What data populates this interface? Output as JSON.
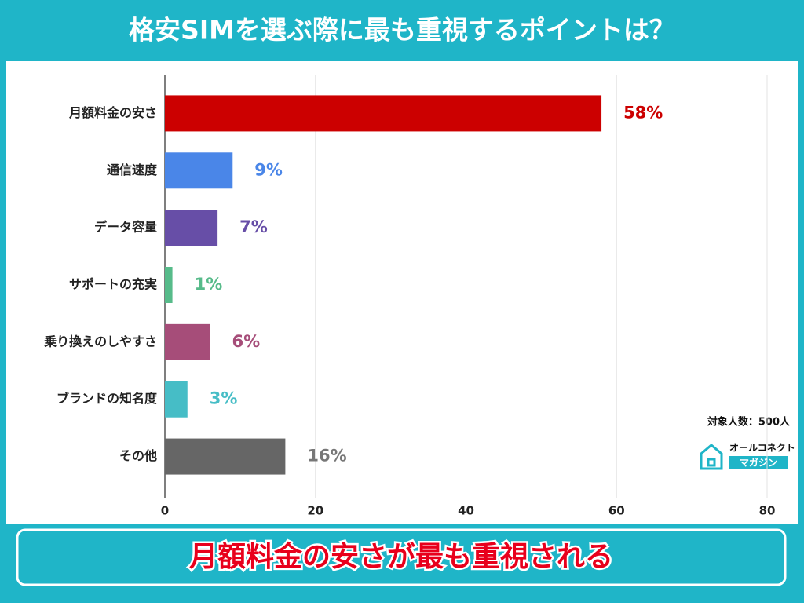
{
  "chart_data": {
    "type": "bar",
    "orientation": "horizontal",
    "title": "格安SIMを選ぶ際に最も重視するポイントは？",
    "categories": [
      "月額料金の安さ",
      "通信速度",
      "データ容量",
      "サポートの充実",
      "乗り換えのしやすさ",
      "ブランドの知名度",
      "その他"
    ],
    "values": [
      58,
      9,
      7,
      1,
      6,
      3,
      16
    ],
    "value_labels": [
      "58%",
      "9%",
      "7%",
      "1%",
      "6%",
      "3%",
      "16%"
    ],
    "colors": [
      "#cc0000",
      "#4a86e8",
      "#674ea7",
      "#57bb8a",
      "#a64d79",
      "#46bdc6",
      "#666666"
    ],
    "label_colors": [
      "#cc0000",
      "#4a86e8",
      "#674ea7",
      "#57bb8a",
      "#a64d79",
      "#46bdc6",
      "#777777"
    ],
    "xlim": [
      0,
      80
    ],
    "xticks": [
      0,
      20,
      40,
      60,
      80
    ],
    "grid": true,
    "note": "対象人数：500人",
    "logo_line1": "オールコネクト",
    "logo_line2": "マガジン",
    "conclusion": "月額料金の安さが最も重視される"
  }
}
